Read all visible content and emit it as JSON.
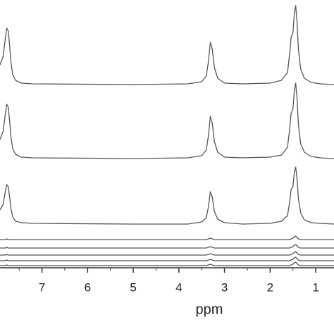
{
  "chart_data": {
    "type": "line",
    "x_label": "ppm",
    "reversed_x": true,
    "xlim": [
      7.92,
      0.6
    ],
    "xticks": [
      7,
      6,
      5,
      4,
      3,
      2,
      1
    ],
    "minor_xticks": [
      7.5,
      6.5,
      5.5,
      4.5,
      3.5,
      2.5,
      1.5
    ],
    "ylim": [
      0,
      380
    ],
    "x": [
      7.92,
      7.85,
      7.8,
      7.77,
      7.74,
      7.71,
      7.68,
      7.64,
      7.58,
      7.45,
      7.2,
      5.0,
      3.8,
      3.5,
      3.4,
      3.35,
      3.31,
      3.27,
      3.22,
      3.15,
      3.0,
      2.6,
      2.0,
      1.75,
      1.62,
      1.57,
      1.54,
      1.5,
      1.47,
      1.44,
      1.41,
      1.38,
      1.33,
      1.25,
      1.1,
      0.9,
      0.6
    ],
    "series": [
      {
        "color": "#555555",
        "values": [
          288,
          300,
          328,
          340,
          336,
          316,
          292,
          274,
          266,
          262,
          261,
          260,
          261,
          264,
          272,
          293,
          320,
          311,
          284,
          269,
          262,
          261,
          262,
          266,
          277,
          305,
          327,
          333,
          361,
          372,
          350,
          310,
          282,
          269,
          263,
          261,
          260
        ]
      },
      {
        "color": "#555555",
        "values": [
          182,
          194,
          220,
          232,
          228,
          209,
          186,
          169,
          161,
          157,
          156,
          155,
          156,
          159,
          167,
          188,
          215,
          206,
          179,
          164,
          157,
          156,
          157,
          160,
          171,
          198,
          219,
          225,
          251,
          262,
          241,
          203,
          176,
          164,
          158,
          156,
          155
        ]
      },
      {
        "color": "#555555",
        "values": [
          82,
          90,
          110,
          118,
          115,
          101,
          84,
          72,
          66,
          64,
          63,
          62,
          62,
          65,
          71,
          87,
          108,
          101,
          80,
          69,
          64,
          62,
          63,
          66,
          74,
          94,
          111,
          115,
          135,
          143,
          127,
          98,
          78,
          68,
          64,
          63,
          62
        ]
      },
      {
        "color": "#555555",
        "values": [
          40,
          40,
          40,
          41,
          40,
          40,
          40,
          40,
          40,
          40,
          40,
          40,
          40,
          40,
          40,
          41,
          42,
          41,
          40,
          40,
          40,
          40,
          40,
          40,
          40,
          40,
          41,
          42,
          44,
          45,
          43,
          41,
          40,
          40,
          40,
          40,
          40
        ]
      },
      {
        "color": "#555555",
        "values": [
          28,
          28,
          28,
          29,
          28,
          28,
          28,
          28,
          28,
          28,
          28,
          28,
          28,
          28,
          28,
          29,
          30,
          29,
          28,
          28,
          28,
          28,
          28,
          28,
          28,
          28,
          29,
          30,
          32,
          33,
          31,
          29,
          28,
          28,
          28,
          28,
          28
        ]
      },
      {
        "color": "#555555",
        "values": [
          18,
          18,
          18,
          19,
          18,
          18,
          18,
          18,
          18,
          18,
          18,
          18,
          18,
          18,
          18,
          19,
          20,
          19,
          18,
          18,
          18,
          18,
          18,
          18,
          18,
          18,
          19,
          20,
          22,
          23,
          21,
          19,
          18,
          18,
          18,
          18,
          18
        ]
      },
      {
        "color": "#555555",
        "values": [
          10,
          10,
          10,
          11,
          10,
          10,
          10,
          10,
          10,
          10,
          10,
          10,
          10,
          10,
          10,
          11,
          12,
          11,
          10,
          10,
          10,
          10,
          10,
          10,
          10,
          10,
          11,
          12,
          14,
          15,
          13,
          11,
          10,
          10,
          10,
          10,
          10
        ]
      },
      {
        "color": "#555555",
        "values": [
          3,
          3,
          3,
          4,
          3,
          3,
          3,
          3,
          3,
          3,
          3,
          3,
          3,
          3,
          3,
          4,
          5,
          4,
          3,
          3,
          3,
          3,
          3,
          3,
          3,
          3,
          4,
          5,
          7,
          8,
          6,
          4,
          3,
          3,
          3,
          3,
          3
        ]
      }
    ]
  }
}
